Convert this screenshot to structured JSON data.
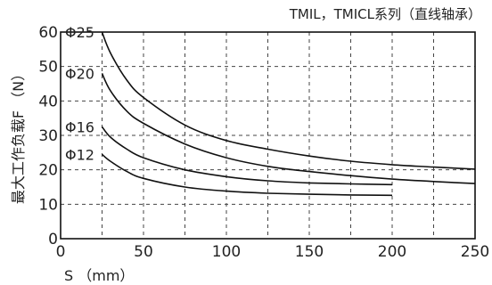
{
  "chart_data": {
    "type": "line",
    "title": "TMIL，TMICL系列（直线轴承）",
    "xlabel": "S （mm）",
    "ylabel": "最大工作负载F （N）",
    "xlim": [
      0,
      250
    ],
    "ylim": [
      0,
      60
    ],
    "xticks": [
      0,
      50,
      100,
      150,
      200,
      250
    ],
    "yticks": [
      0,
      10,
      20,
      30,
      40,
      50,
      60
    ],
    "grid": true,
    "series": [
      {
        "name": "Φ25",
        "x": [
          25,
          30,
          40,
          50,
          75,
          100,
          125,
          150,
          175,
          200,
          225,
          250
        ],
        "y": [
          60,
          54,
          46,
          41,
          33,
          28.5,
          26,
          24,
          22.5,
          21.5,
          20.8,
          20.2
        ]
      },
      {
        "name": "Φ20",
        "x": [
          25,
          30,
          40,
          50,
          75,
          100,
          125,
          150,
          175,
          200,
          225,
          250
        ],
        "y": [
          48,
          43,
          37,
          33.5,
          27.5,
          23.5,
          21,
          19.5,
          18.3,
          17.3,
          16.6,
          16
        ]
      },
      {
        "name": "Φ16",
        "x": [
          25,
          30,
          40,
          50,
          75,
          100,
          125,
          150,
          175,
          200
        ],
        "y": [
          32.5,
          29.5,
          26,
          23.5,
          20,
          18,
          16.8,
          16.2,
          15.9,
          15.7
        ]
      },
      {
        "name": "Φ12",
        "x": [
          25,
          30,
          40,
          50,
          75,
          100,
          125,
          150,
          175,
          200
        ],
        "y": [
          24.5,
          22.5,
          19.5,
          17.5,
          15,
          13.8,
          13.2,
          12.9,
          12.7,
          12.6
        ]
      }
    ]
  }
}
